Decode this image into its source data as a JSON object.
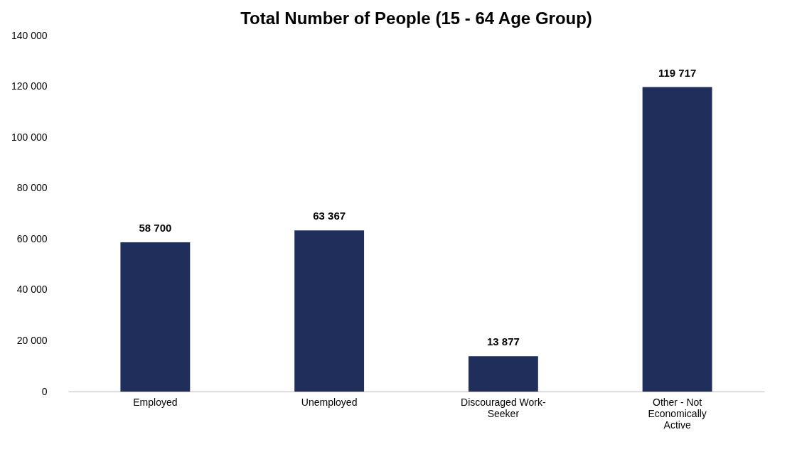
{
  "chart_data": {
    "type": "bar",
    "title": "Total Number of People (15 - 64 Age Group)",
    "categories": [
      "Employed",
      "Unemployed",
      "Discouraged Work-Seeker",
      "Other - Not Economically Active"
    ],
    "values": [
      58700,
      63367,
      13877,
      119717
    ],
    "value_labels": [
      "58 700",
      "63 367",
      "13 877",
      "119 717"
    ],
    "color": "#1f2e5a",
    "ylim": [
      0,
      140000
    ],
    "yticks": [
      {
        "value": 0,
        "label": "0"
      },
      {
        "value": 20000,
        "label": "20 000"
      },
      {
        "value": 40000,
        "label": "40 000"
      },
      {
        "value": 60000,
        "label": "60 000"
      },
      {
        "value": 80000,
        "label": "80 000"
      },
      {
        "value": 100000,
        "label": "100 000"
      },
      {
        "value": 120000,
        "label": "120 000"
      },
      {
        "value": 140000,
        "label": "140 000"
      }
    ],
    "grid": false
  }
}
